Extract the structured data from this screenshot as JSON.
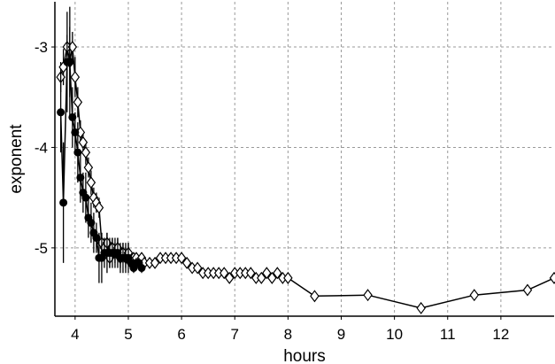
{
  "chart_data": {
    "type": "scatter",
    "xlabel": "hours",
    "ylabel": "exponent",
    "xlim": [
      3.62,
      13.0
    ],
    "ylim": [
      -5.68,
      -2.55
    ],
    "xticks": [
      4,
      5,
      6,
      7,
      8,
      9,
      10,
      11,
      12
    ],
    "yticks": [
      -3,
      -4,
      -5
    ],
    "xtick_labels": [
      "4",
      "5",
      "6",
      "7",
      "8",
      "9",
      "10",
      "11",
      "12"
    ],
    "ytick_labels": [
      "-3",
      "-4",
      "-5"
    ],
    "grid": true,
    "legend": "none",
    "colors": {
      "series": "#000000",
      "grid": "#9a9a9a",
      "background": "#ffffff"
    },
    "series": [
      {
        "marker": "open-diamond",
        "line": true,
        "x": [
          3.73,
          3.78,
          3.85,
          3.9,
          3.95,
          4.0,
          4.05,
          4.1,
          4.15,
          4.2,
          4.25,
          4.3,
          4.35,
          4.4,
          4.45,
          4.5,
          4.55,
          4.6,
          4.65,
          4.7,
          4.75,
          4.8,
          4.85,
          4.9,
          4.95,
          5.0,
          5.05,
          5.1,
          5.15,
          5.2,
          5.25,
          5.3,
          5.4,
          5.5,
          5.6,
          5.7,
          5.8,
          5.9,
          6.0,
          6.1,
          6.2,
          6.3,
          6.4,
          6.5,
          6.6,
          6.7,
          6.8,
          6.9,
          7.0,
          7.1,
          7.2,
          7.3,
          7.4,
          7.5,
          7.6,
          7.7,
          7.8,
          7.9,
          8.0,
          8.5,
          9.5,
          10.5,
          11.5,
          12.5,
          13.0
        ],
        "y": [
          -3.3,
          -3.2,
          -3.0,
          -3.15,
          -3.0,
          -3.3,
          -3.55,
          -3.85,
          -3.95,
          -4.05,
          -4.2,
          -4.35,
          -4.5,
          -4.55,
          -4.6,
          -4.95,
          -5.0,
          -4.95,
          -5.1,
          -5.0,
          -5.05,
          -5.0,
          -5.1,
          -5.05,
          -5.1,
          -5.05,
          -5.15,
          -5.1,
          -5.1,
          -5.15,
          -5.1,
          -5.15,
          -5.15,
          -5.15,
          -5.1,
          -5.1,
          -5.1,
          -5.1,
          -5.1,
          -5.15,
          -5.2,
          -5.2,
          -5.25,
          -5.25,
          -5.25,
          -5.25,
          -5.25,
          -5.3,
          -5.25,
          -5.25,
          -5.25,
          -5.25,
          -5.3,
          -5.3,
          -5.25,
          -5.3,
          -5.25,
          -5.3,
          -5.3,
          -5.48,
          -5.47,
          -5.6,
          -5.47,
          -5.42,
          -5.3
        ],
        "err": [
          0.15,
          0.18,
          0.12,
          0.35,
          0.15,
          0.2,
          0.15,
          0.12,
          0.1,
          0.12,
          0.1,
          0.12,
          0.1,
          0.1,
          0.1,
          0.1,
          0.1,
          0.1,
          0.1,
          0.1,
          0.1,
          0.1,
          0.1,
          0.1,
          0.1,
          0.1,
          0.05,
          0.05,
          0.05,
          0.05,
          0.05,
          0.05,
          0.03,
          0.03,
          0.03,
          0.03,
          0.03,
          0.03,
          0.03,
          0.03,
          0.03,
          0.03,
          0.03,
          0.05,
          0.05,
          0.05,
          0.05,
          0.05,
          0.05,
          0.05,
          0.05,
          0.05,
          0.05,
          0.05,
          0.05,
          0.05,
          0.05,
          0.05,
          0.05,
          0.0,
          0.0,
          0.0,
          0.0,
          0.0,
          0.0
        ]
      },
      {
        "marker": "filled-circle",
        "line": true,
        "x": [
          3.73,
          3.78,
          3.85,
          3.9,
          3.95,
          4.0,
          4.05,
          4.1,
          4.15,
          4.2,
          4.25,
          4.3,
          4.35,
          4.4,
          4.45,
          4.5,
          4.55,
          4.6,
          4.65,
          4.7,
          4.75,
          4.8,
          4.85,
          4.9,
          4.95,
          5.0,
          5.05,
          5.1,
          5.15,
          5.2,
          5.25
        ],
        "y": [
          -3.65,
          -4.55,
          -3.15,
          -3.15,
          -3.7,
          -3.85,
          -4.05,
          -4.3,
          -4.45,
          -4.5,
          -4.7,
          -4.75,
          -4.85,
          -4.9,
          -5.1,
          -5.1,
          -5.05,
          -5.05,
          -5.05,
          -5.05,
          -5.05,
          -5.05,
          -5.1,
          -5.1,
          -5.1,
          -5.1,
          -5.15,
          -5.2,
          -5.15,
          -5.15,
          -5.2
        ],
        "err": [
          0.4,
          0.6,
          0.5,
          0.55,
          0.3,
          0.2,
          0.3,
          0.25,
          0.2,
          0.25,
          0.2,
          0.2,
          0.2,
          0.15,
          0.25,
          0.25,
          0.15,
          0.2,
          0.15,
          0.15,
          0.15,
          0.15,
          0.15,
          0.15,
          0.15,
          0.15,
          0.05,
          0.05,
          0.05,
          0.05,
          0.05
        ]
      }
    ]
  }
}
